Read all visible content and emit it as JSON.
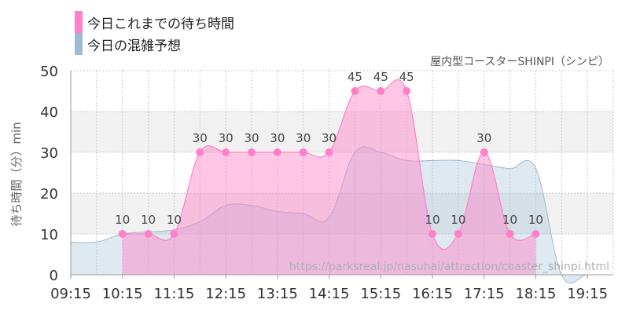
{
  "legend": {
    "actual_label": "今日これまでの待ち時間",
    "forecast_label": "今日の混雑予想",
    "actual_color": "#ff80c8",
    "forecast_color": "#9dbad3"
  },
  "chart_data": {
    "type": "area",
    "title": "屋内型コースターSHINPI（シンピ）",
    "ylabel": "待ち時間（分）min",
    "xlabel": "",
    "ylim": [
      0,
      50
    ],
    "yticks": [
      0,
      10,
      20,
      30,
      40,
      50
    ],
    "xlim": [
      "09:15",
      "19:45"
    ],
    "xticks": [
      "09:15",
      "10:15",
      "11:15",
      "12:15",
      "13:15",
      "14:15",
      "15:15",
      "16:15",
      "17:15",
      "18:15",
      "19:15"
    ],
    "grid": true,
    "legend_position": "top-left",
    "watermark": "https://parksreal.jp/nasuhai/attraction/coaster_shinpi.html",
    "series": [
      {
        "name": "今日これまでの待ち時間",
        "color": "#ff80c8",
        "x": [
          "10:15",
          "10:45",
          "11:15",
          "11:45",
          "12:15",
          "12:45",
          "13:15",
          "13:45",
          "14:15",
          "14:45",
          "15:15",
          "15:45",
          "16:15",
          "16:45",
          "17:15",
          "17:45",
          "18:15"
        ],
        "values": [
          10,
          10,
          10,
          30,
          30,
          30,
          30,
          30,
          30,
          45,
          45,
          45,
          10,
          10,
          30,
          10,
          10
        ],
        "labels": [
          "10",
          "10",
          "10",
          "30",
          "30",
          "30",
          "30",
          "30",
          "30",
          "45",
          "45",
          "45",
          "10",
          "10",
          "30",
          "10",
          "10"
        ]
      },
      {
        "name": "今日の混雑予想",
        "color": "#9dbad3",
        "x": [
          "09:15",
          "09:45",
          "10:15",
          "10:45",
          "11:15",
          "11:45",
          "12:15",
          "12:45",
          "13:15",
          "13:45",
          "14:15",
          "14:45",
          "15:15",
          "15:45",
          "16:15",
          "16:45",
          "17:15",
          "17:45",
          "18:15",
          "18:45",
          "19:15",
          "19:45"
        ],
        "values": [
          8,
          8,
          10,
          10.5,
          11,
          13,
          17,
          17,
          15.5,
          15,
          14,
          30,
          30,
          28,
          28,
          28,
          27,
          26,
          26,
          0,
          0,
          0
        ]
      }
    ]
  }
}
